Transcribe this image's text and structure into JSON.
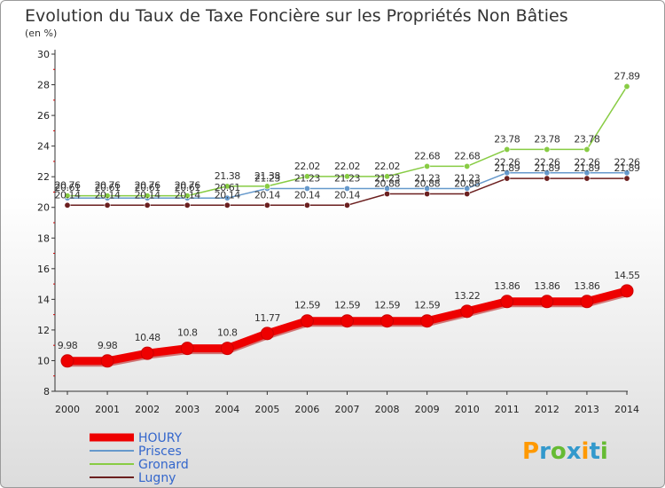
{
  "chart_data": {
    "type": "line",
    "title": "Evolution du Taux de Taxe Foncière sur les Propriétés Non Bâties",
    "subtitle": "(en %)",
    "xlabel": "",
    "ylabel": "",
    "ylim": [
      8,
      30
    ],
    "yticks": [
      "8",
      "10",
      "12",
      "14",
      "16",
      "18",
      "20",
      "22",
      "24",
      "26",
      "28",
      "30"
    ],
    "categories": [
      "2000",
      "2001",
      "2002",
      "2003",
      "2004",
      "2005",
      "2006",
      "2007",
      "2008",
      "2009",
      "2010",
      "2011",
      "2012",
      "2013",
      "2014"
    ],
    "grid": false,
    "legend_position": "bottom-left",
    "series": [
      {
        "name": "HOURY",
        "color": "#ee0000",
        "values": [
          9.98,
          9.98,
          10.48,
          10.8,
          10.8,
          11.77,
          12.59,
          12.59,
          12.59,
          12.59,
          13.22,
          13.86,
          13.86,
          13.86,
          14.55
        ],
        "labels": [
          "9.98",
          "9.98",
          "10.48",
          "10.8",
          "10.8",
          "11.77",
          "12.59",
          "12.59",
          "12.59",
          "12.59",
          "13.22",
          "13.86",
          "13.86",
          "13.86",
          "14.55"
        ]
      },
      {
        "name": "Prisces",
        "color": "#6699cc",
        "values": [
          20.61,
          20.61,
          20.61,
          20.61,
          20.61,
          21.23,
          21.23,
          21.23,
          21.23,
          21.23,
          21.23,
          22.26,
          22.26,
          22.26,
          22.26
        ],
        "labels": [
          "20.61",
          "20.61",
          "20.61",
          "20.61",
          "20.61",
          "21.23",
          "21.23",
          "21.23",
          "21.23",
          "21.23",
          "21.23",
          "22.26",
          "22.26",
          "22.26",
          "22.26"
        ]
      },
      {
        "name": "Gronard",
        "color": "#88cc44",
        "values": [
          20.76,
          20.76,
          20.76,
          20.76,
          21.38,
          21.38,
          22.02,
          22.02,
          22.02,
          22.68,
          22.68,
          23.78,
          23.78,
          23.78,
          27.89
        ],
        "labels": [
          "20.76",
          "20.76",
          "20.76",
          "20.76",
          "21.38",
          "21.38",
          "22.02",
          "22.02",
          "22.02",
          "22.68",
          "22.68",
          "23.78",
          "23.78",
          "23.78",
          "27.89"
        ]
      },
      {
        "name": "Lugny",
        "color": "#6b1f1f",
        "values": [
          20.14,
          20.14,
          20.14,
          20.14,
          20.14,
          20.14,
          20.14,
          20.14,
          20.88,
          20.88,
          20.88,
          21.89,
          21.89,
          21.89,
          21.89
        ],
        "labels": [
          "20.14",
          "20.14",
          "20.14",
          "20.14",
          "20.14",
          "20.14",
          "20.14",
          "20.14",
          "20.88",
          "20.88",
          "20.88",
          "21.89",
          "21.89",
          "21.89",
          "21.89"
        ]
      }
    ]
  },
  "logo": {
    "letters": [
      "P",
      "r",
      "o",
      "x",
      "i",
      "t",
      "i"
    ],
    "colors": [
      "#ff9900",
      "#3399cc",
      "#66bb33",
      "#3399cc",
      "#ff9900",
      "#3399cc",
      "#66bb33"
    ]
  }
}
